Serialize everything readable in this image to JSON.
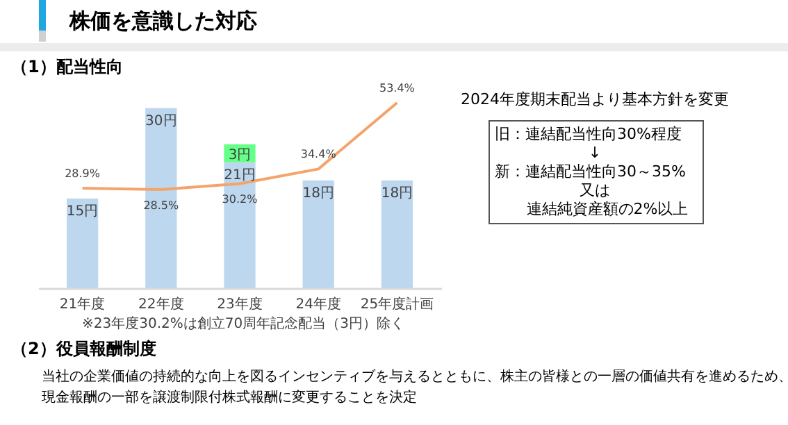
{
  "chart_data": {
    "type": "bar",
    "title": "株価を意識した対応",
    "subtitle": "（1）配当性向",
    "categories": [
      "21年度",
      "22年度",
      "23年度",
      "24年度",
      "25年度計画"
    ],
    "stacked": true,
    "tick_labels": "x",
    "series": [
      {
        "color": "#bdd7ee",
        "values": [
          15,
          30,
          21,
          18,
          18
        ],
        "value_labels": [
          "15円",
          "30円",
          "21円",
          "18円",
          "18円"
        ]
      },
      {
        "color": "#66ff88",
        "values": [
          null,
          null,
          3,
          null,
          null
        ],
        "value_labels": [
          null,
          null,
          "3円",
          null,
          null
        ]
      },
      {
        "type": "line",
        "axis": "y2",
        "color": "#f4a46a",
        "values": [
          28.9,
          28.5,
          30.2,
          34.4,
          53.4
        ],
        "value_labels": [
          "28.9%",
          "28.5%",
          "30.2%",
          "34.4%",
          "53.4%"
        ]
      }
    ],
    "annotations": [
      "※23年度30.2%は創立70周年記念配当（3円）除く",
      "2024年度期末配当より基本方針を変更",
      "旧：連結配当性向30%程度",
      "↓",
      "新：連結配当性向30～35%",
      "又は",
      "連結純資産額の2%以上",
      "（2）役員報酬制度",
      "当社の企業価値の持続的な向上を図るインセンティブを与えるとともに、株主の皆様との一層の価値共有を進めるため、",
      "現金報酬の一部を譲渡制限付株式報酬に変更することを決定"
    ]
  }
}
